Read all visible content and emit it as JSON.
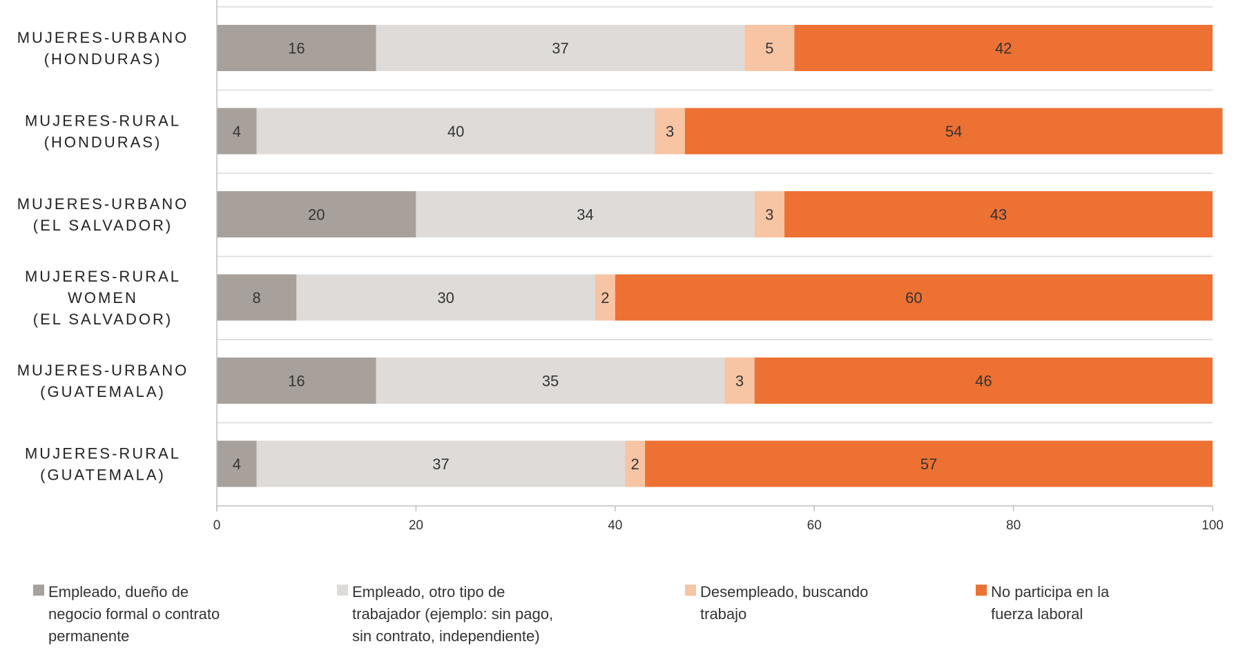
{
  "chart_data": {
    "type": "bar",
    "orientation": "horizontal",
    "stacked": true,
    "categories": [
      [
        "MUJERES-URBANO",
        "(HONDURAS)"
      ],
      [
        "MUJERES-RURAL",
        "(HONDURAS)"
      ],
      [
        "MUJERES-URBANO",
        "(EL SALVADOR)"
      ],
      [
        "MUJERES-RURAL",
        "WOMEN",
        "(EL SALVADOR)"
      ],
      [
        "MUJERES-URBANO",
        "(GUATEMALA)"
      ],
      [
        "MUJERES-RURAL",
        "(GUATEMALA)"
      ]
    ],
    "series": [
      {
        "name": "Empleado, dueño de\nnegocio formal o contrato\n permanente",
        "color": "#a8a19b",
        "values": [
          16,
          4,
          20,
          8,
          16,
          4
        ]
      },
      {
        "name": "Empleado, otro tipo de\n trabajador (ejemplo: sin pago,\nsin contrato, independiente)",
        "color": "#dedbd8",
        "values": [
          37,
          40,
          34,
          30,
          35,
          37
        ]
      },
      {
        "name": "Desempleado, buscando\ntrabajo",
        "color": "#f7c4a4",
        "values": [
          5,
          3,
          3,
          2,
          3,
          2
        ]
      },
      {
        "name": "No participa en la\nfuerza laboral",
        "color": "#ed7132",
        "values": [
          42,
          54,
          43,
          60,
          46,
          57
        ]
      }
    ],
    "xlim": [
      0,
      100
    ],
    "xticks": [
      "0",
      "20",
      "40",
      "60",
      "80",
      "100"
    ],
    "title": "",
    "xlabel": "",
    "ylabel": "",
    "grid": "horizontal separators",
    "legend_position": "bottom"
  }
}
